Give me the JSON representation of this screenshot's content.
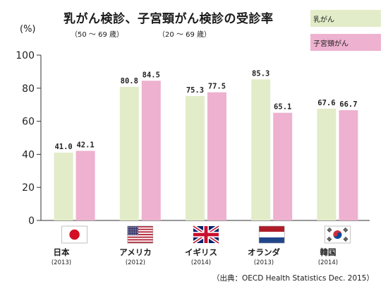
{
  "title": "乳がん検診、子宮頸がん検診の受診率",
  "subtitle_left": "（50 ～ 69 歳）",
  "subtitle_right": "（20 ～ 69 歳）",
  "unit_label": "(%)",
  "source": "（出典：OECD Health Statistics Dec. 2015）",
  "colors": {
    "breast": "#e2ecc8",
    "cervical": "#eeb1cf",
    "axis": "#333333"
  },
  "countries": [
    {
      "name": "日本",
      "year": "(2013)",
      "flag": "japan-flag"
    },
    {
      "name": "アメリカ",
      "year": "(2012)",
      "flag": "usa-flag"
    },
    {
      "name": "イギリス",
      "year": "(2014)",
      "flag": "uk-flag"
    },
    {
      "name": "オランダ",
      "year": "(2013)",
      "flag": "netherlands-flag"
    },
    {
      "name": "韓国",
      "year": "(2014)",
      "flag": "korea-flag"
    }
  ],
  "chart_data": {
    "type": "bar",
    "title": "乳がん検診、子宮頸がん検診の受診率",
    "categories": [
      "日本",
      "アメリカ",
      "イギリス",
      "オランダ",
      "韓国"
    ],
    "ylabel": "(%)",
    "ylim": [
      0,
      100
    ],
    "yticks": [
      "0",
      "20",
      "40",
      "60",
      "80",
      "100"
    ],
    "legend_position": "top-right",
    "series": [
      {
        "name": "乳がん",
        "values": [
          41.0,
          80.8,
          75.3,
          85.3,
          67.6
        ],
        "labels": [
          "41.0",
          "80.8",
          "75.3",
          "85.3",
          "67.6"
        ]
      },
      {
        "name": "子宮頸がん",
        "values": [
          42.1,
          84.5,
          77.5,
          65.1,
          66.7
        ],
        "labels": [
          "42.1",
          "84.5",
          "77.5",
          "65.1",
          "66.7"
        ]
      }
    ]
  }
}
